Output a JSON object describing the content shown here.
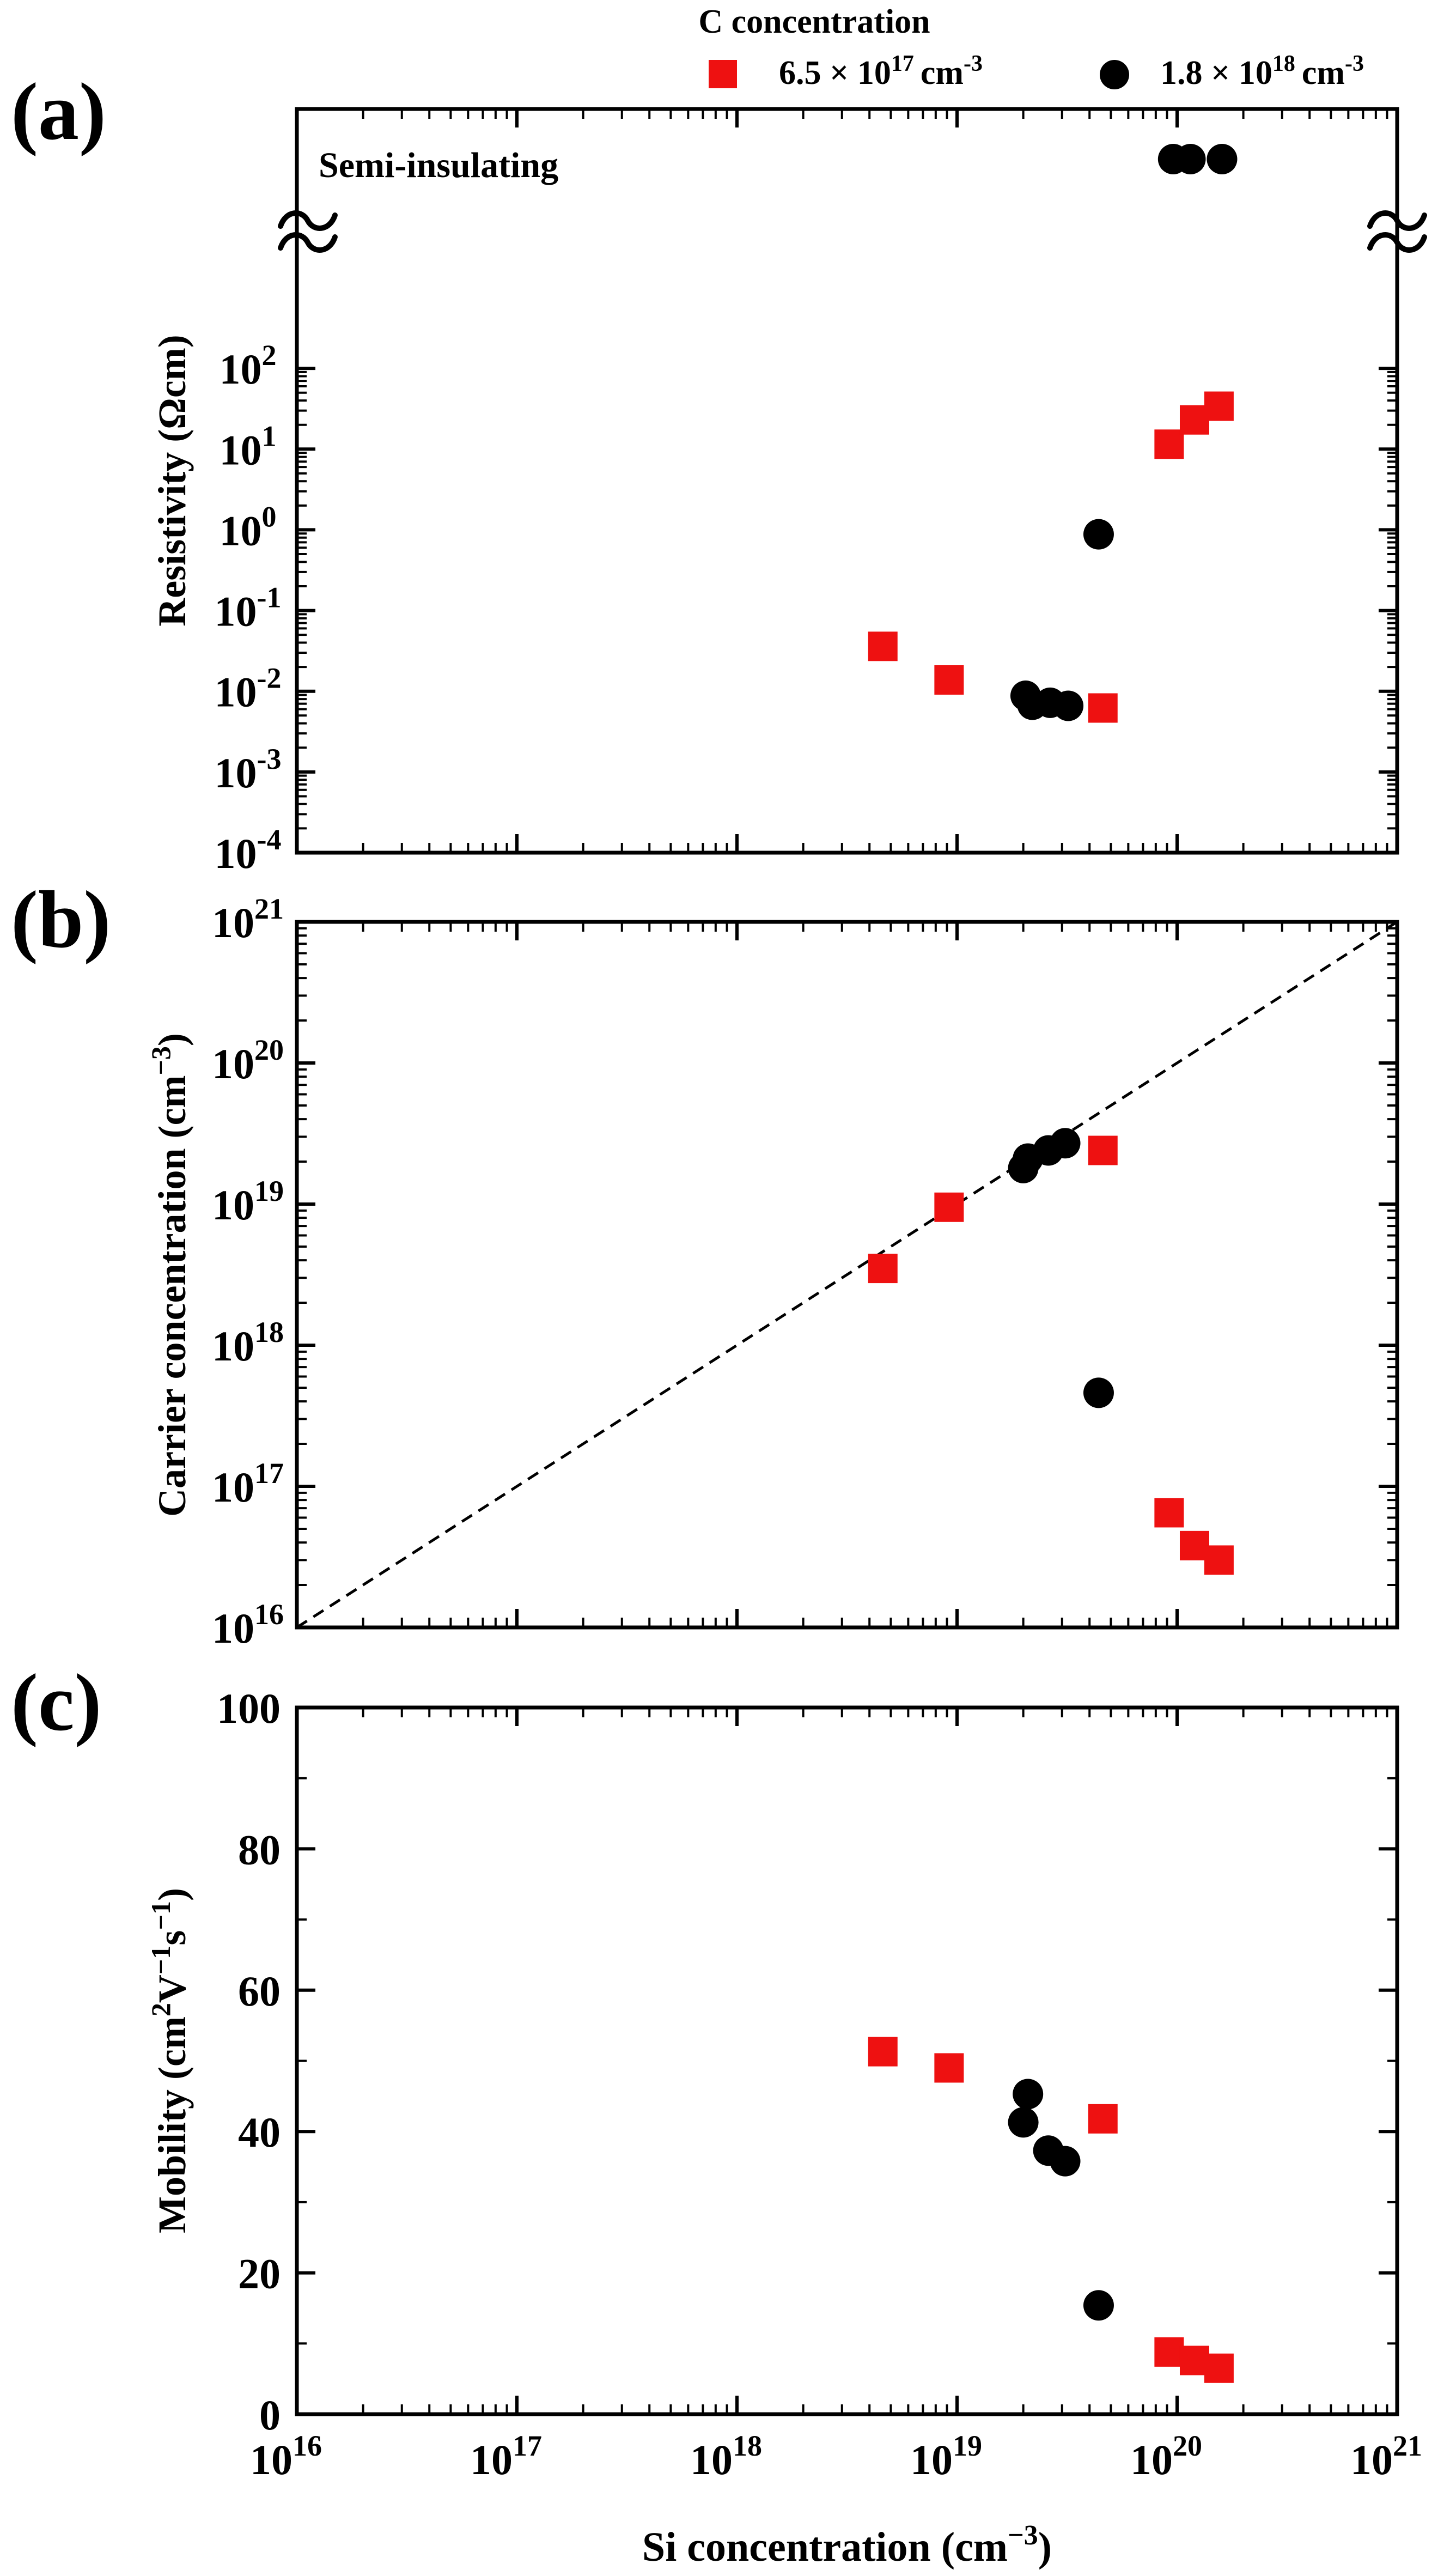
{
  "legend": {
    "title": "C concentration",
    "series": [
      {
        "name": "6.5 × 10^17 cm^-3",
        "coef": "6.5 × 10",
        "exp": "17",
        "unit": "cm",
        "unit_exp": "-3",
        "marker": "square",
        "color": "#ee1111"
      },
      {
        "name": "1.8 × 10^18 cm^-3",
        "coef": "1.8 × 10",
        "exp": "18",
        "unit": "cm",
        "unit_exp": "-3",
        "marker": "circle",
        "color": "#000000"
      }
    ]
  },
  "x_axis": {
    "label": "Si concentration (cm",
    "label_exp": "−3",
    "label_close": ")",
    "scale": "log",
    "range": [
      1e+16,
      1e+21
    ],
    "ticks": [
      {
        "value": 1e+16,
        "base": "10",
        "exp": "16"
      },
      {
        "value": 1e+17,
        "base": "10",
        "exp": "17"
      },
      {
        "value": 1e+18,
        "base": "10",
        "exp": "18"
      },
      {
        "value": 1e+19,
        "base": "10",
        "exp": "19"
      },
      {
        "value": 1e+20,
        "base": "10",
        "exp": "20"
      },
      {
        "value": 1e+21,
        "base": "10",
        "exp": "21"
      }
    ]
  },
  "chart_data": [
    {
      "panel_label": "(a)",
      "type": "scatter",
      "ylabel": "Resistivity (Ωcm)",
      "yscale": "log",
      "ylim": [
        0.0001,
        1000.0
      ],
      "yticks": [
        {
          "value": 0.0001,
          "base": "10",
          "exp": "-4"
        },
        {
          "value": 0.001,
          "base": "10",
          "exp": "-3"
        },
        {
          "value": 0.01,
          "base": "10",
          "exp": "-2"
        },
        {
          "value": 0.1,
          "base": "10",
          "exp": "-1"
        },
        {
          "value": 1,
          "base": "10",
          "exp": "0"
        },
        {
          "value": 10,
          "base": "10",
          "exp": "1"
        },
        {
          "value": 100,
          "base": "10",
          "exp": "2"
        }
      ],
      "axis_break": true,
      "annotation": "Semi-insulating",
      "series": [
        {
          "name": "6.5 × 10^17 cm^-3",
          "points": [
            [
              4.6e+18,
              0.036
            ],
            [
              9.2e+18,
              0.0138
            ],
            [
              4.6e+19,
              0.0062
            ],
            [
              9.2e+19,
              11.5
            ],
            [
              1.2e+20,
              23
            ],
            [
              1.55e+20,
              34
            ]
          ],
          "semi_insulating": []
        },
        {
          "name": "1.8 × 10^18 cm^-3",
          "points": [
            [
              2.05e+19,
              0.0088
            ],
            [
              2.2e+19,
              0.0068
            ],
            [
              2.65e+19,
              0.0072
            ],
            [
              3.2e+19,
              0.0066
            ],
            [
              4.4e+19,
              0.88
            ]
          ],
          "semi_insulating": [
            9.6e+19,
            1.15e+20,
            1.6e+20
          ]
        }
      ]
    },
    {
      "panel_label": "(b)",
      "type": "scatter",
      "ylabel": "Carrier concentration (cm",
      "ylabel_exp": "−3",
      "ylabel_close": ")",
      "yscale": "log",
      "ylim": [
        1e+16,
        1e+21
      ],
      "yticks": [
        {
          "value": 1e+16,
          "base": "10",
          "exp": "16"
        },
        {
          "value": 1e+17,
          "base": "10",
          "exp": "17"
        },
        {
          "value": 1e+18,
          "base": "10",
          "exp": "18"
        },
        {
          "value": 1e+19,
          "base": "10",
          "exp": "19"
        },
        {
          "value": 1e+20,
          "base": "10",
          "exp": "20"
        },
        {
          "value": 1e+21,
          "base": "10",
          "exp": "21"
        }
      ],
      "reference_line": {
        "style": "dashed",
        "from": [
          1e+16,
          1e+16
        ],
        "to": [
          1e+21,
          1e+21
        ]
      },
      "series": [
        {
          "name": "6.5 × 10^17 cm^-3",
          "points": [
            [
              4.6e+18,
              3.5e+18
            ],
            [
              9.2e+18,
              9.5e+18
            ],
            [
              4.6e+19,
              2.4e+19
            ],
            [
              9.2e+19,
              6.5e+16
            ],
            [
              1.2e+20,
              3.8e+16
            ],
            [
              1.55e+20,
              3e+16
            ]
          ]
        },
        {
          "name": "1.8 × 10^18 cm^-3",
          "points": [
            [
              2e+19,
              1.8e+19
            ],
            [
              2.1e+19,
              2.1e+19
            ],
            [
              2.6e+19,
              2.4e+19
            ],
            [
              3.1e+19,
              2.7e+19
            ],
            [
              4.4e+19,
              4.6e+17
            ]
          ]
        }
      ]
    },
    {
      "panel_label": "(c)",
      "type": "scatter",
      "ylabel": "Mobility (cm",
      "ylabel_parts": [
        "2",
        "V",
        "−1",
        "s",
        "−1",
        ")"
      ],
      "yscale": "linear",
      "ylim": [
        0,
        100
      ],
      "yticks": [
        {
          "value": 0,
          "text": "0"
        },
        {
          "value": 20,
          "text": "20"
        },
        {
          "value": 40,
          "text": "40"
        },
        {
          "value": 60,
          "text": "60"
        },
        {
          "value": 80,
          "text": "80"
        },
        {
          "value": 100,
          "text": "100"
        }
      ],
      "series": [
        {
          "name": "6.5 × 10^17 cm^-3",
          "points": [
            [
              4.6e+18,
              51.3
            ],
            [
              9.2e+18,
              49
            ],
            [
              4.6e+19,
              41.8
            ],
            [
              9.2e+19,
              8.8
            ],
            [
              1.2e+20,
              7.6
            ],
            [
              1.55e+20,
              6.5
            ]
          ]
        },
        {
          "name": "1.8 × 10^18 cm^-3",
          "points": [
            [
              2e+19,
              41.3
            ],
            [
              2.1e+19,
              45.3
            ],
            [
              2.6e+19,
              37.3
            ],
            [
              3.1e+19,
              35.8
            ],
            [
              4.4e+19,
              15.4
            ]
          ]
        }
      ]
    }
  ]
}
